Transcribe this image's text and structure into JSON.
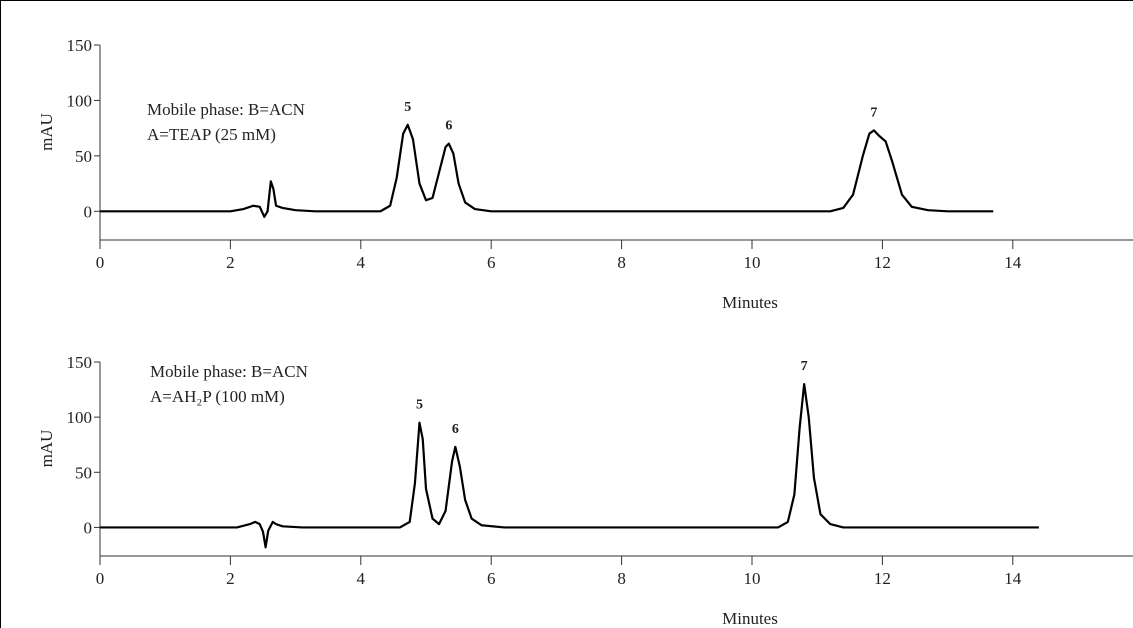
{
  "chart_data": [
    {
      "type": "line",
      "color": "#000000",
      "ylabel": "mAU",
      "xlabel": "Minutes",
      "annotation": [
        "Mobile phase: B=ACN",
        "A=TEAP (25 mM)"
      ],
      "xlim": [
        0,
        16
      ],
      "ylim": [
        -25,
        150
      ],
      "xticks": [
        0,
        2,
        4,
        6,
        8,
        10,
        12,
        14,
        16
      ],
      "yticks": [
        0,
        50,
        100,
        150
      ],
      "x": [
        0,
        2.0,
        2.2,
        2.35,
        2.45,
        2.52,
        2.57,
        2.62,
        2.66,
        2.7,
        2.8,
        3.0,
        3.3,
        4.3,
        4.45,
        4.55,
        4.65,
        4.72,
        4.8,
        4.9,
        5.0,
        5.1,
        5.2,
        5.3,
        5.35,
        5.42,
        5.5,
        5.6,
        5.75,
        6.0,
        11.2,
        11.4,
        11.55,
        11.7,
        11.8,
        11.87,
        11.95,
        12.05,
        12.15,
        12.3,
        12.45,
        12.7,
        13.0,
        13.7
      ],
      "values": [
        0,
        0,
        2,
        5,
        4,
        -5,
        0,
        27,
        20,
        5,
        3,
        1,
        0,
        0,
        5,
        30,
        70,
        78,
        65,
        25,
        10,
        12,
        35,
        58,
        61,
        52,
        25,
        8,
        2,
        0,
        0,
        3,
        15,
        50,
        70,
        73,
        68,
        63,
        45,
        15,
        4,
        1,
        0,
        0
      ],
      "peak_labels": [
        {
          "label": "5",
          "x": 4.72,
          "y": 78
        },
        {
          "label": "6",
          "x": 5.35,
          "y": 61
        },
        {
          "label": "7",
          "x": 11.87,
          "y": 73
        }
      ]
    },
    {
      "type": "line",
      "color": "#000000",
      "ylabel": "mAU",
      "xlabel": "Minutes",
      "annotation": [
        "Mobile phase: B=ACN",
        "A=AH₂P (100 mM)"
      ],
      "xlim": [
        0,
        16
      ],
      "ylim": [
        -25,
        150
      ],
      "xticks": [
        0,
        2,
        4,
        6,
        8,
        10,
        12,
        14,
        16
      ],
      "yticks": [
        0,
        50,
        100,
        150
      ],
      "x": [
        0,
        2.1,
        2.3,
        2.38,
        2.45,
        2.5,
        2.54,
        2.58,
        2.65,
        2.7,
        2.8,
        3.1,
        4.6,
        4.75,
        4.83,
        4.9,
        4.95,
        5.0,
        5.1,
        5.2,
        5.3,
        5.4,
        5.45,
        5.52,
        5.6,
        5.7,
        5.85,
        6.2,
        10.4,
        10.55,
        10.65,
        10.73,
        10.8,
        10.87,
        10.95,
        11.05,
        11.2,
        11.4,
        14.4
      ],
      "values": [
        0,
        0,
        3,
        5,
        3,
        -4,
        -18,
        -3,
        5,
        3,
        1,
        0,
        0,
        5,
        40,
        95,
        80,
        35,
        8,
        3,
        15,
        60,
        73,
        55,
        25,
        8,
        2,
        0,
        0,
        5,
        30,
        90,
        130,
        100,
        45,
        12,
        3,
        0,
        0
      ],
      "peak_labels": [
        {
          "label": "5",
          "x": 4.9,
          "y": 95
        },
        {
          "label": "6",
          "x": 5.45,
          "y": 73
        },
        {
          "label": "7",
          "x": 10.8,
          "y": 130
        }
      ]
    }
  ]
}
